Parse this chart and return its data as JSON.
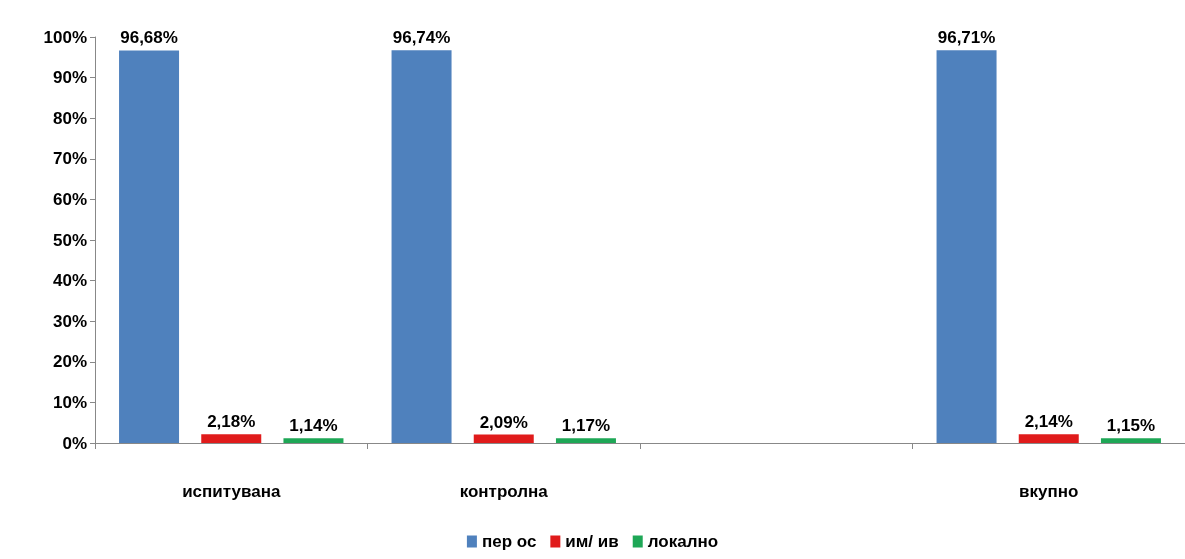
{
  "chart_data": {
    "type": "bar",
    "categories": [
      "испитувана",
      "контролна",
      null,
      "вкупно"
    ],
    "series": [
      {
        "name": "пер ос",
        "color": "#4f81bd",
        "values": [
          96.68,
          96.74,
          null,
          96.71
        ],
        "value_labels": [
          "96,68%",
          "96,74%",
          null,
          "96,71%"
        ]
      },
      {
        "name": "им/ ив",
        "color": "#e01b1b",
        "values": [
          2.18,
          2.09,
          null,
          2.14
        ],
        "value_labels": [
          "2,18%",
          "2,09%",
          null,
          "2,14%"
        ]
      },
      {
        "name": "локално",
        "color": "#1ea756",
        "values": [
          1.14,
          1.17,
          null,
          1.15
        ],
        "value_labels": [
          "1,14%",
          "1,17%",
          null,
          "1,15%"
        ]
      }
    ],
    "ylim": [
      0,
      100
    ],
    "yticks": [
      {
        "value": 0,
        "label": "0%"
      },
      {
        "value": 10,
        "label": "10%"
      },
      {
        "value": 20,
        "label": "20%"
      },
      {
        "value": 30,
        "label": "30%"
      },
      {
        "value": 40,
        "label": "40%"
      },
      {
        "value": 50,
        "label": "50%"
      },
      {
        "value": 60,
        "label": "60%"
      },
      {
        "value": 70,
        "label": "70%"
      },
      {
        "value": 80,
        "label": "80%"
      },
      {
        "value": 90,
        "label": "90%"
      },
      {
        "value": 100,
        "label": "100%"
      }
    ],
    "grid": false,
    "legend": "bottom"
  }
}
